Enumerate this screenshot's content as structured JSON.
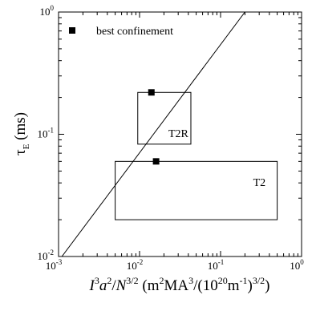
{
  "chart_data": {
    "type": "scatter",
    "xscale": "log",
    "yscale": "log",
    "xlim": [
      0.001,
      1
    ],
    "ylim": [
      0.01,
      1
    ],
    "grid": false,
    "ylabel": {
      "main": "τ",
      "sub": "E",
      "unit": " (ms)"
    },
    "xlabel": {
      "parts": [
        {
          "t": "I",
          "s": "italic"
        },
        {
          "t": "3",
          "s": "sup"
        },
        {
          "t": "a",
          "s": "italic"
        },
        {
          "t": "2",
          "s": "sup"
        },
        {
          "t": "/",
          "s": "normal"
        },
        {
          "t": "N",
          "s": "italic"
        },
        {
          "t": "3/2",
          "s": "sup"
        },
        {
          "t": " (m",
          "s": "normal"
        },
        {
          "t": "2",
          "s": "sup"
        },
        {
          "t": "MA",
          "s": "normal"
        },
        {
          "t": "3",
          "s": "sup"
        },
        {
          "t": "/(10",
          "s": "normal"
        },
        {
          "t": "20",
          "s": "sup"
        },
        {
          "t": "m",
          "s": "normal"
        },
        {
          "t": "-1",
          "s": "sup"
        },
        {
          "t": ")",
          "s": "normal"
        },
        {
          "t": "3/2",
          "s": "sup"
        },
        {
          "t": ")",
          "s": "normal"
        }
      ]
    },
    "xticks": [
      {
        "value": 0.001,
        "base": "10",
        "exp": "-3"
      },
      {
        "value": 0.01,
        "base": "10",
        "exp": "-2"
      },
      {
        "value": 0.1,
        "base": "10",
        "exp": "-1"
      },
      {
        "value": 1,
        "base": "10",
        "exp": "0"
      }
    ],
    "yticks": [
      {
        "value": 0.01,
        "base": "10",
        "exp": "-2"
      },
      {
        "value": 0.1,
        "base": "10",
        "exp": "-1"
      },
      {
        "value": 1,
        "base": "10",
        "exp": "0"
      }
    ],
    "legend": {
      "label": "best confinement",
      "position": "top-left",
      "marker": "square"
    },
    "series": [
      {
        "name": "best confinement",
        "marker": "square",
        "color": "#000000",
        "points": [
          {
            "x": 0.014,
            "y": 0.22
          },
          {
            "x": 0.016,
            "y": 0.06
          }
        ]
      }
    ],
    "regions": [
      {
        "label": "T2R",
        "x": [
          0.0095,
          0.043
        ],
        "y": [
          0.083,
          0.22
        ],
        "label_position": "bottom-right"
      },
      {
        "label": "T2",
        "x": [
          0.005,
          0.5
        ],
        "y": [
          0.02,
          0.06
        ],
        "label_position": "right"
      }
    ],
    "line": {
      "points": [
        {
          "x": 0.0011,
          "y": 0.01
        },
        {
          "x": 0.2,
          "y": 1
        }
      ]
    }
  }
}
